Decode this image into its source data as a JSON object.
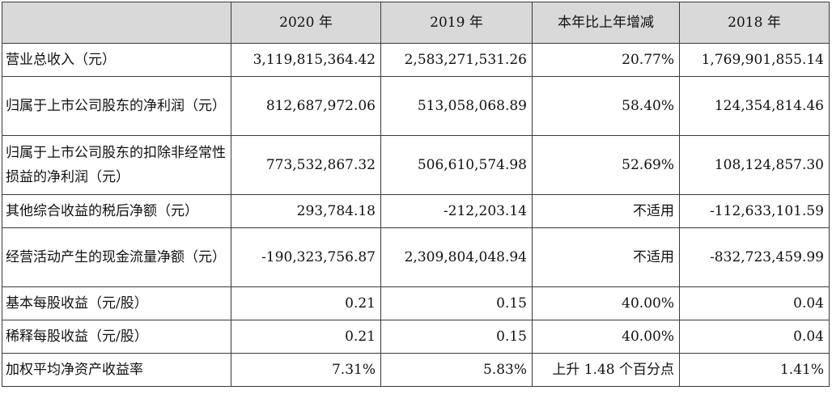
{
  "table": {
    "headers": [
      "",
      "2020 年",
      "2019 年",
      "本年比上年增减",
      "2018 年"
    ],
    "rows": [
      {
        "label": "营业总收入（元）",
        "y2020": "3,119,815,364.42",
        "y2019": "2,583,271,531.26",
        "change": "20.77%",
        "y2018": "1,769,901,855.14"
      },
      {
        "label": "归属于上市公司股东的净利润（元）",
        "y2020": "812,687,972.06",
        "y2019": "513,058,068.89",
        "change": "58.40%",
        "y2018": "124,354,814.46"
      },
      {
        "label": "归属于上市公司股东的扣除非经常性损益的净利润（元）",
        "y2020": "773,532,867.32",
        "y2019": "506,610,574.98",
        "change": "52.69%",
        "y2018": "108,124,857.30"
      },
      {
        "label": "其他综合收益的税后净额（元）",
        "y2020": "293,784.18",
        "y2019": "-212,203.14",
        "change": "不适用",
        "y2018": "-112,633,101.59"
      },
      {
        "label": "经营活动产生的现金流量净额（元）",
        "y2020": "-190,323,756.87",
        "y2019": "2,309,804,048.94",
        "change": "不适用",
        "y2018": "-832,723,459.99"
      },
      {
        "label": "基本每股收益（元/股）",
        "y2020": "0.21",
        "y2019": "0.15",
        "change": "40.00%",
        "y2018": "0.04"
      },
      {
        "label": "稀释每股收益（元/股）",
        "y2020": "0.21",
        "y2019": "0.15",
        "change": "40.00%",
        "y2018": "0.04"
      },
      {
        "label": "加权平均净资产收益率",
        "y2020": "7.31%",
        "y2019": "5.83%",
        "change": "上升 1.48 个百分点",
        "y2018": "1.41%"
      }
    ]
  }
}
